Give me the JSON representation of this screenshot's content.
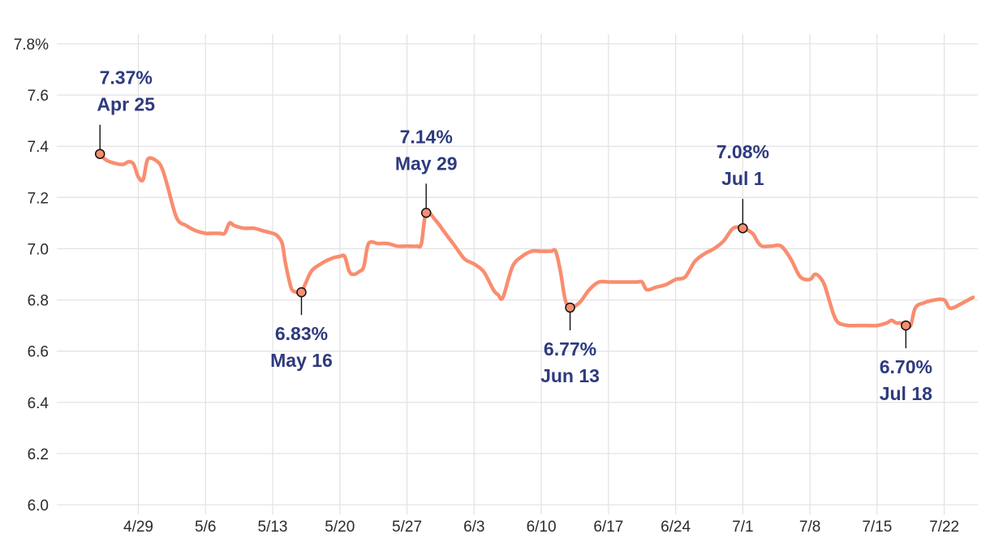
{
  "chart_data": {
    "type": "line",
    "title": "",
    "xlabel": "",
    "ylabel": "",
    "ylim": [
      6.0,
      7.8
    ],
    "yticks": [
      6.0,
      6.2,
      6.4,
      6.6,
      6.8,
      7.0,
      7.2,
      7.4,
      7.6,
      7.8
    ],
    "ytick_labels": [
      "6.0",
      "6.2",
      "6.4",
      "6.6",
      "6.8",
      "7.0",
      "7.2",
      "7.4",
      "7.6",
      "7.8%"
    ],
    "xlim_days": [
      -4.5,
      91.5
    ],
    "x_note": "x values are days after Apr 25",
    "xticks": [
      {
        "day": 4,
        "label": "4/29"
      },
      {
        "day": 11,
        "label": "5/6"
      },
      {
        "day": 18,
        "label": "5/13"
      },
      {
        "day": 25,
        "label": "5/20"
      },
      {
        "day": 32,
        "label": "5/27"
      },
      {
        "day": 39,
        "label": "6/3"
      },
      {
        "day": 46,
        "label": "6/10"
      },
      {
        "day": 53,
        "label": "6/17"
      },
      {
        "day": 60,
        "label": "6/24"
      },
      {
        "day": 67,
        "label": "7/1"
      },
      {
        "day": 74,
        "label": "7/8"
      },
      {
        "day": 81,
        "label": "7/15"
      },
      {
        "day": 88,
        "label": "7/22"
      }
    ],
    "grid": true,
    "line_color": "#f98d6f",
    "annotation_color": "#2e3a7e",
    "series": [
      {
        "name": "Rate",
        "x": [
          0,
          0.5,
          1,
          2,
          2.5,
          3,
          3.5,
          4,
          4.5,
          5,
          6,
          6.5,
          7,
          8,
          9,
          10,
          11,
          11.5,
          12,
          12.5,
          13,
          13.5,
          14,
          15,
          16,
          17,
          18,
          18.5,
          19,
          19.3,
          19.7,
          20,
          20.5,
          21,
          22,
          23,
          24,
          25,
          25.5,
          26,
          26.5,
          27,
          27.5,
          28,
          29,
          30,
          31,
          32,
          33,
          33.5,
          34,
          35,
          36,
          37,
          38,
          39,
          40,
          41,
          41.5,
          42,
          43,
          44,
          45,
          46,
          47,
          47.5,
          48,
          48.5,
          49,
          50,
          51,
          52,
          53,
          54,
          55,
          56,
          56.5,
          57,
          58,
          59,
          60,
          61,
          62,
          63,
          64,
          65,
          66,
          67,
          68,
          68.5,
          69,
          70,
          71,
          72,
          73,
          74,
          74.5,
          75,
          75.5,
          76,
          76.5,
          77,
          78,
          79,
          80,
          81,
          82,
          82.5,
          83,
          83.5,
          84,
          84.5,
          85,
          86,
          87,
          88,
          88.5,
          89,
          90,
          91
        ],
        "values": [
          7.37,
          7.35,
          7.34,
          7.33,
          7.33,
          7.34,
          7.33,
          7.28,
          7.27,
          7.35,
          7.34,
          7.31,
          7.25,
          7.12,
          7.09,
          7.07,
          7.06,
          7.06,
          7.06,
          7.06,
          7.06,
          7.1,
          7.09,
          7.08,
          7.08,
          7.07,
          7.06,
          7.05,
          7.02,
          6.95,
          6.88,
          6.84,
          6.83,
          6.83,
          6.91,
          6.94,
          6.96,
          6.97,
          6.97,
          6.91,
          6.9,
          6.91,
          6.93,
          7.02,
          7.02,
          7.02,
          7.01,
          7.01,
          7.01,
          7.02,
          7.14,
          7.11,
          7.06,
          7.01,
          6.96,
          6.94,
          6.91,
          6.84,
          6.82,
          6.81,
          6.93,
          6.97,
          6.99,
          6.99,
          6.99,
          6.99,
          6.91,
          6.8,
          6.77,
          6.79,
          6.84,
          6.87,
          6.87,
          6.87,
          6.87,
          6.87,
          6.87,
          6.84,
          6.85,
          6.86,
          6.88,
          6.89,
          6.95,
          6.98,
          7.0,
          7.03,
          7.08,
          7.08,
          7.06,
          7.03,
          7.01,
          7.01,
          7.01,
          6.96,
          6.89,
          6.88,
          6.9,
          6.89,
          6.86,
          6.8,
          6.74,
          6.71,
          6.7,
          6.7,
          6.7,
          6.7,
          6.71,
          6.72,
          6.71,
          6.71,
          6.7,
          6.7,
          6.77,
          6.79,
          6.8,
          6.8,
          6.77,
          6.77,
          6.79,
          6.81
        ]
      }
    ],
    "annotations": [
      {
        "day": 0,
        "value": 7.37,
        "rate_label": "7.37%",
        "date_label": "Apr 25",
        "placement": "above"
      },
      {
        "day": 21,
        "value": 6.83,
        "rate_label": "6.83%",
        "date_label": "May 16",
        "placement": "below"
      },
      {
        "day": 34,
        "value": 7.14,
        "rate_label": "7.14%",
        "date_label": "May 29",
        "placement": "above"
      },
      {
        "day": 49,
        "value": 6.77,
        "rate_label": "6.77%",
        "date_label": "Jun 13",
        "placement": "below"
      },
      {
        "day": 67,
        "value": 7.08,
        "rate_label": "7.08%",
        "date_label": "Jul 1",
        "placement": "above"
      },
      {
        "day": 84,
        "value": 6.7,
        "rate_label": "6.70%",
        "date_label": "Jul 18",
        "placement": "below"
      }
    ]
  }
}
